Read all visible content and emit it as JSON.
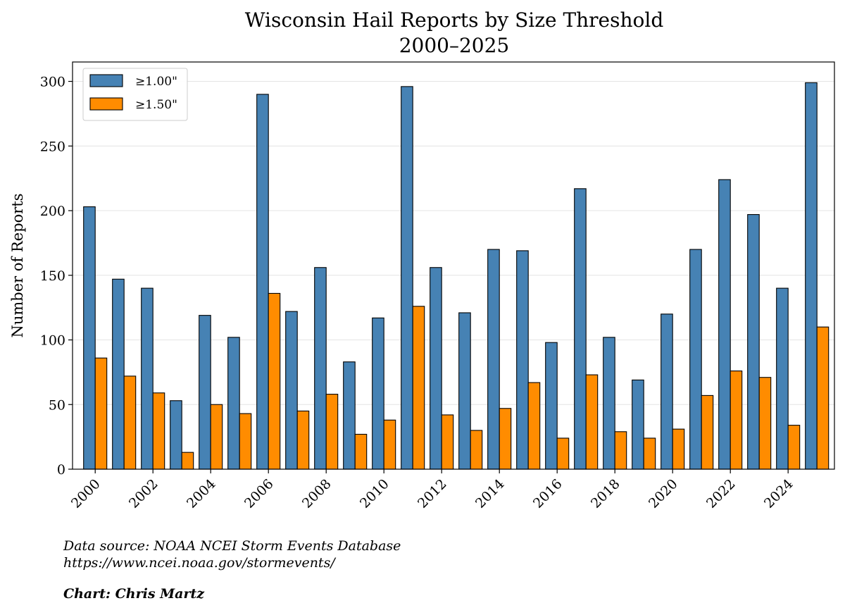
{
  "chart_data": {
    "type": "bar",
    "title": "Wisconsin Hail Reports by Size Threshold",
    "subtitle": "2000–2025",
    "xlabel": "",
    "ylabel": "Number of Reports",
    "ylim": [
      0,
      315
    ],
    "yticks": [
      0,
      50,
      100,
      150,
      200,
      250,
      300
    ],
    "grid": "horizontal",
    "legend_position": "top-left",
    "categories": [
      "2000",
      "2001",
      "2002",
      "2003",
      "2004",
      "2005",
      "2006",
      "2007",
      "2008",
      "2009",
      "2010",
      "2011",
      "2012",
      "2013",
      "2014",
      "2015",
      "2016",
      "2017",
      "2018",
      "2019",
      "2020",
      "2021",
      "2022",
      "2023",
      "2024",
      "2025"
    ],
    "xtick_labels": [
      "2000",
      "2002",
      "2004",
      "2006",
      "2008",
      "2010",
      "2012",
      "2014",
      "2016",
      "2018",
      "2020",
      "2022",
      "2024"
    ],
    "series": [
      {
        "name": "≥1.00\"",
        "color": "#4682b4",
        "values": [
          203,
          147,
          140,
          53,
          119,
          102,
          290,
          122,
          156,
          83,
          117,
          296,
          156,
          121,
          170,
          169,
          98,
          217,
          102,
          69,
          120,
          170,
          224,
          197,
          140,
          299
        ]
      },
      {
        "name": "≥1.50\"",
        "color": "#ff8c00",
        "values": [
          86,
          72,
          59,
          13,
          50,
          43,
          136,
          45,
          58,
          27,
          38,
          126,
          42,
          30,
          47,
          67,
          24,
          73,
          29,
          24,
          31,
          57,
          76,
          71,
          34,
          110
        ]
      }
    ]
  },
  "footer": {
    "source_line1": "Data source: NOAA NCEI Storm Events Database",
    "source_line2": "https://www.ncei.noaa.gov/stormevents/",
    "credit": "Chart: Chris Martz"
  }
}
